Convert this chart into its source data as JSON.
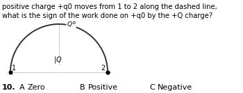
{
  "title_line1": "positive charge +q0 moves from 1 to 2 along the dashed line,",
  "title_line2": "what is the sign of the work done on +q0 by the +Q charge?",
  "question_number": "10.",
  "options": [
    {
      "letter": "A",
      "text": "Zero"
    },
    {
      "letter": "B",
      "text": "Positive"
    },
    {
      "letter": "C",
      "text": "Negative"
    }
  ],
  "bg_color": "#ffffff",
  "text_color": "#000000",
  "arc_color": "#333333",
  "grid_color": "#c8c8c8",
  "fig_width": 3.5,
  "fig_height": 1.35,
  "dpi": 100
}
